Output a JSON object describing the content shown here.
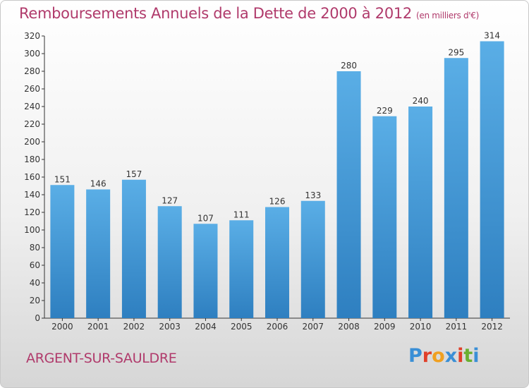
{
  "header": {
    "title": "Remboursements Annuels de la Dette de 2000 à 2012",
    "unit": "(en milliers d'€)"
  },
  "footer": {
    "city": "ARGENT-SUR-SAULDRE",
    "logo": "Proxiti"
  },
  "colors": {
    "title": "#b03a6b",
    "bar_top": "#5aaee6",
    "bar_bottom": "#2e7fc0",
    "logo": [
      "#3a8fd6",
      "#e0402a",
      "#f0a020",
      "#3a8fd6",
      "#e0402a",
      "#6ab030",
      "#3a8fd6"
    ]
  },
  "chart_data": {
    "type": "bar",
    "title": "Remboursements Annuels de la Dette de 2000 à 2012",
    "subtitle": "(en milliers d'€)",
    "categories": [
      "2000",
      "2001",
      "2002",
      "2003",
      "2004",
      "2005",
      "2006",
      "2007",
      "2008",
      "2009",
      "2010",
      "2011",
      "2012"
    ],
    "values": [
      151,
      146,
      157,
      127,
      107,
      111,
      126,
      133,
      280,
      229,
      240,
      295,
      314
    ],
    "ylim": [
      0,
      320
    ],
    "yticks": [
      0,
      20,
      40,
      60,
      80,
      100,
      120,
      140,
      160,
      180,
      200,
      220,
      240,
      260,
      280,
      300,
      320
    ],
    "grid": false,
    "legend": "none"
  }
}
